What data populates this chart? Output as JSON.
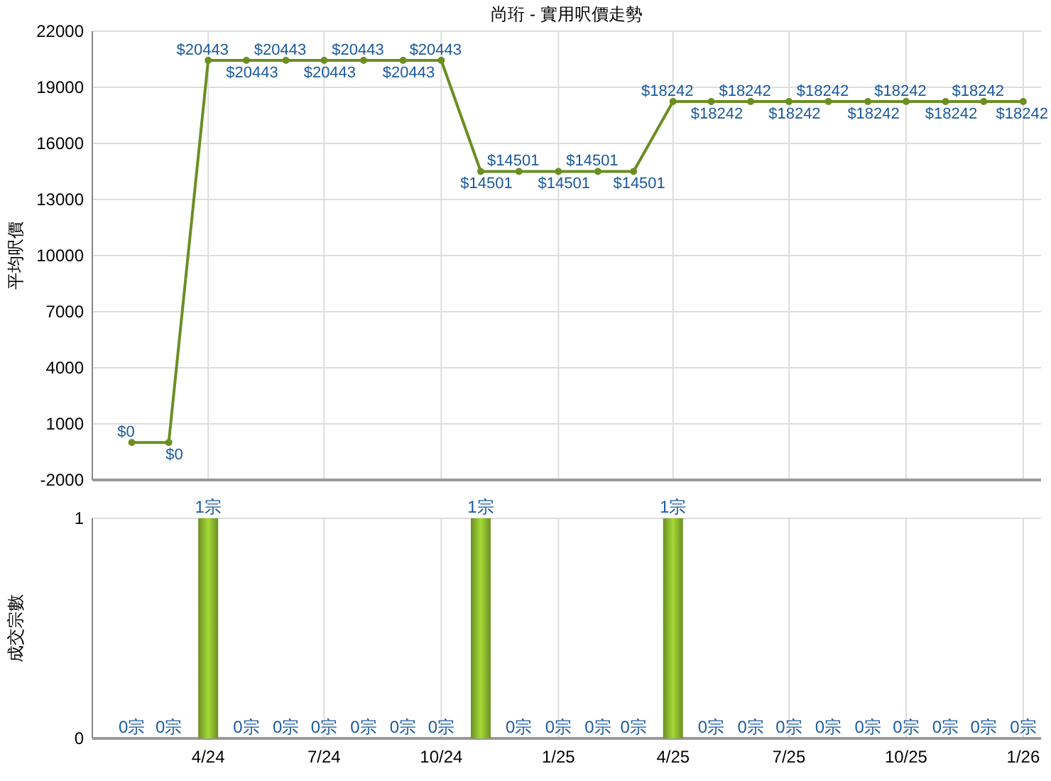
{
  "chart_data": [
    {
      "type": "line",
      "title": "尚珩 - 實用呎價走勢",
      "ylabel": "平均呎價",
      "x": [
        "2024-02",
        "2024-03",
        "2024-04",
        "2024-05",
        "2024-06",
        "2024-07",
        "2024-08",
        "2024-09",
        "2024-10",
        "2024-11",
        "2024-12",
        "2025-01",
        "2025-02",
        "2025-03",
        "2025-04",
        "2025-05",
        "2025-06",
        "2025-07",
        "2025-08",
        "2025-09",
        "2025-10",
        "2025-11",
        "2025-12",
        "2026-01"
      ],
      "series": [
        {
          "color": "#6b8e23",
          "values": [
            0,
            0,
            20443,
            20443,
            20443,
            20443,
            20443,
            20443,
            20443,
            14501,
            14501,
            14501,
            14501,
            14501,
            18242,
            18242,
            18242,
            18242,
            18242,
            18242,
            18242,
            18242,
            18242,
            18242
          ],
          "value_labels": [
            "$0",
            "$0",
            "$20443",
            "$20443",
            "$20443",
            "$20443",
            "$20443",
            "$20443",
            "$20443",
            "$14501",
            "$14501",
            "$14501",
            "$14501",
            "$14501",
            "$18242",
            "$18242",
            "$18242",
            "$18242",
            "$18242",
            "$18242",
            "$18242",
            "$18242",
            "$18242",
            "$18242"
          ]
        }
      ],
      "xlim": [
        "2024-01",
        "2026-01-15"
      ],
      "xticks": [
        {
          "value": "2024-04",
          "label": null
        },
        {
          "value": "2024-07",
          "label": null
        },
        {
          "value": "2024-10",
          "label": null
        },
        {
          "value": "2025-01",
          "label": null
        },
        {
          "value": "2025-04",
          "label": null
        },
        {
          "value": "2025-07",
          "label": null
        },
        {
          "value": "2025-10",
          "label": null
        },
        {
          "value": "2026-01",
          "label": null
        }
      ],
      "ylim": [
        -2000,
        22000
      ],
      "yticks": [
        -2000,
        1000,
        4000,
        7000,
        10000,
        13000,
        16000,
        19000,
        22000
      ],
      "grid": true,
      "marker": "circle",
      "line_style": "solid",
      "tick_labels": "y"
    },
    {
      "type": "bar",
      "ylabel": "成交宗數",
      "x": [
        "2024-02",
        "2024-03",
        "2024-04",
        "2024-05",
        "2024-06",
        "2024-07",
        "2024-08",
        "2024-09",
        "2024-10",
        "2024-11",
        "2024-12",
        "2025-01",
        "2025-02",
        "2025-03",
        "2025-04",
        "2025-05",
        "2025-06",
        "2025-07",
        "2025-08",
        "2025-09",
        "2025-10",
        "2025-11",
        "2025-12",
        "2026-01"
      ],
      "series": [
        {
          "color": "#6b8e23",
          "values": [
            0,
            0,
            1,
            0,
            0,
            0,
            0,
            0,
            0,
            1,
            0,
            0,
            0,
            0,
            1,
            0,
            0,
            0,
            0,
            0,
            0,
            0,
            0,
            0
          ],
          "value_labels": [
            "0宗",
            "0宗",
            "1宗",
            "0宗",
            "0宗",
            "0宗",
            "0宗",
            "0宗",
            "0宗",
            "1宗",
            "0宗",
            "0宗",
            "0宗",
            "0宗",
            "1宗",
            "0宗",
            "0宗",
            "0宗",
            "0宗",
            "0宗",
            "0宗",
            "0宗",
            "0宗",
            "0宗"
          ]
        }
      ],
      "xlim": [
        "2024-01",
        "2026-01-15"
      ],
      "xticks": [
        {
          "value": "2024-04",
          "label": "4/24"
        },
        {
          "value": "2024-07",
          "label": "7/24"
        },
        {
          "value": "2024-10",
          "label": "10/24"
        },
        {
          "value": "2025-01",
          "label": "1/25"
        },
        {
          "value": "2025-04",
          "label": "4/25"
        },
        {
          "value": "2025-07",
          "label": "7/25"
        },
        {
          "value": "2025-10",
          "label": "10/25"
        },
        {
          "value": "2026-01",
          "label": "1/26"
        }
      ],
      "ylim": [
        0,
        1
      ],
      "yticks": [
        0,
        1
      ],
      "grid": true
    }
  ]
}
